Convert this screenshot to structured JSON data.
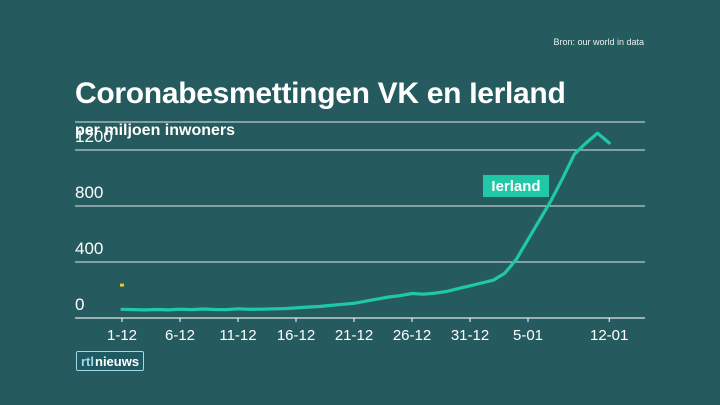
{
  "source": "Bron: our world in data",
  "title": "Coronabesmettingen VK en Ierland",
  "subtitle": "per miljoen inwoners",
  "logo": {
    "rtl": "rtl",
    "nieuws": "nieuws"
  },
  "colors": {
    "background": "#255b5e",
    "line": "#1fc9a8",
    "marker": "#f2c12e",
    "grid": "#ffffff"
  },
  "chart_data": {
    "type": "line",
    "title": "Coronabesmettingen VK en Ierland",
    "ylabel": "per miljoen inwoners",
    "ylim": [
      0,
      1400
    ],
    "yticks": [
      0,
      400,
      800,
      1200
    ],
    "xticks": [
      "1-12",
      "6-12",
      "11-12",
      "16-12",
      "21-12",
      "26-12",
      "31-12",
      "5-01",
      "12-01"
    ],
    "grid": true,
    "series": [
      {
        "name": "Ierland",
        "x": [
          "1-12",
          "2-12",
          "3-12",
          "4-12",
          "5-12",
          "6-12",
          "7-12",
          "8-12",
          "9-12",
          "10-12",
          "11-12",
          "12-12",
          "13-12",
          "14-12",
          "15-12",
          "16-12",
          "17-12",
          "18-12",
          "19-12",
          "20-12",
          "21-12",
          "22-12",
          "23-12",
          "24-12",
          "25-12",
          "26-12",
          "27-12",
          "28-12",
          "29-12",
          "30-12",
          "31-12",
          "1-01",
          "2-01",
          "3-01",
          "4-01",
          "5-01",
          "6-01",
          "7-01",
          "8-01",
          "9-01",
          "10-01",
          "11-01",
          "12-01"
        ],
        "y": [
          62,
          60,
          58,
          61,
          58,
          63,
          60,
          64,
          61,
          59,
          66,
          62,
          63,
          65,
          67,
          72,
          78,
          82,
          90,
          98,
          105,
          120,
          135,
          150,
          160,
          175,
          170,
          178,
          190,
          210,
          230,
          250,
          270,
          320,
          420,
          560,
          700,
          840,
          1000,
          1170,
          1250,
          1320,
          1250
        ]
      }
    ],
    "marker": {
      "x": "1-12",
      "y": 235
    }
  }
}
